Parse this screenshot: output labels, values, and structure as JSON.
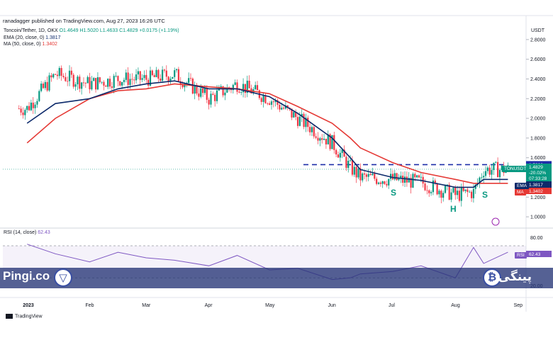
{
  "header": {
    "published": "ranadagger published on TradingView.com, Aug 27, 2023 16:26 UTC",
    "symbol": "Toncoin/Tether, 1D, OKX",
    "ohlc": "O1.4649 H1.5020 L1.4633 C1.4829 +0.0175 (+1.19%)",
    "ema_label": "EMA (20, close, 0)",
    "ema_value": "1.3817",
    "ma_label": "MA (50, close, 0)",
    "ma_value": "1.3402",
    "currency": "USDT"
  },
  "price_axis": [
    "2.8000",
    "2.6000",
    "2.4000",
    "2.2000",
    "2.0000",
    "1.8000",
    "1.6000",
    "1.2000",
    "1.0000"
  ],
  "rsi_axis": [
    "80.00",
    "20.00"
  ],
  "time_axis": [
    "2023",
    "Feb",
    "Mar",
    "Apr",
    "May",
    "Jun",
    "Jul",
    "Aug",
    "Sep"
  ],
  "badges": {
    "resistance": "1.5300",
    "price_symbol": "TONUSDT",
    "price": "1.4829",
    "change": "-20.02%",
    "countdown": "07:33:28",
    "ema_name": "EMA",
    "ema_value": "1.3817",
    "ma_name": "MA",
    "ma_value": "1.3402",
    "rsi_name": "RSI",
    "rsi_value": "62.43"
  },
  "pattern_labels": [
    "S",
    "H",
    "S"
  ],
  "rsi": {
    "label": "RSI (14, close)",
    "value": "62.43"
  },
  "brand": {
    "left": "Pingi.co",
    "right": "پینگی",
    "footer": "TradingView"
  },
  "colors": {
    "up": "#089981",
    "down": "#f23645",
    "ema": "#0d2a6b",
    "ma": "#e53935",
    "rsi": "#7e57c2",
    "resistance": "#1e2ea8"
  },
  "chart_data": {
    "type": "line",
    "x": [
      "2023-01-01",
      "2023-01-15",
      "2023-02-01",
      "2023-02-15",
      "2023-03-01",
      "2023-03-15",
      "2023-04-01",
      "2023-04-15",
      "2023-05-01",
      "2023-05-15",
      "2023-06-01",
      "2023-06-10",
      "2023-06-15",
      "2023-07-01",
      "2023-07-15",
      "2023-08-01",
      "2023-08-10",
      "2023-08-15",
      "2023-08-27"
    ],
    "series": [
      {
        "name": "TONUSDT",
        "values": [
          2.1,
          2.45,
          2.35,
          2.4,
          2.4,
          2.45,
          2.2,
          2.35,
          2.2,
          2.0,
          1.75,
          1.5,
          1.4,
          1.38,
          1.35,
          1.22,
          1.25,
          1.48,
          1.48
        ]
      },
      {
        "name": "EMA",
        "values": [
          1.95,
          2.15,
          2.2,
          2.3,
          2.35,
          2.38,
          2.3,
          2.3,
          2.22,
          2.05,
          1.8,
          1.6,
          1.48,
          1.4,
          1.37,
          1.3,
          1.3,
          1.38,
          1.38
        ]
      },
      {
        "name": "MA",
        "values": [
          1.75,
          2.0,
          2.2,
          2.28,
          2.3,
          2.35,
          2.32,
          2.3,
          2.25,
          2.12,
          1.95,
          1.8,
          1.7,
          1.55,
          1.45,
          1.38,
          1.34,
          1.34,
          1.34
        ]
      }
    ],
    "rsi_values": [
      72,
      60,
      50,
      62,
      55,
      52,
      45,
      58,
      40,
      42,
      28,
      30,
      35,
      38,
      45,
      30,
      68,
      48,
      62
    ],
    "resistance": 1.53,
    "ylim": [
      0.9,
      2.95
    ],
    "rsi_ylim": [
      10,
      85
    ]
  }
}
